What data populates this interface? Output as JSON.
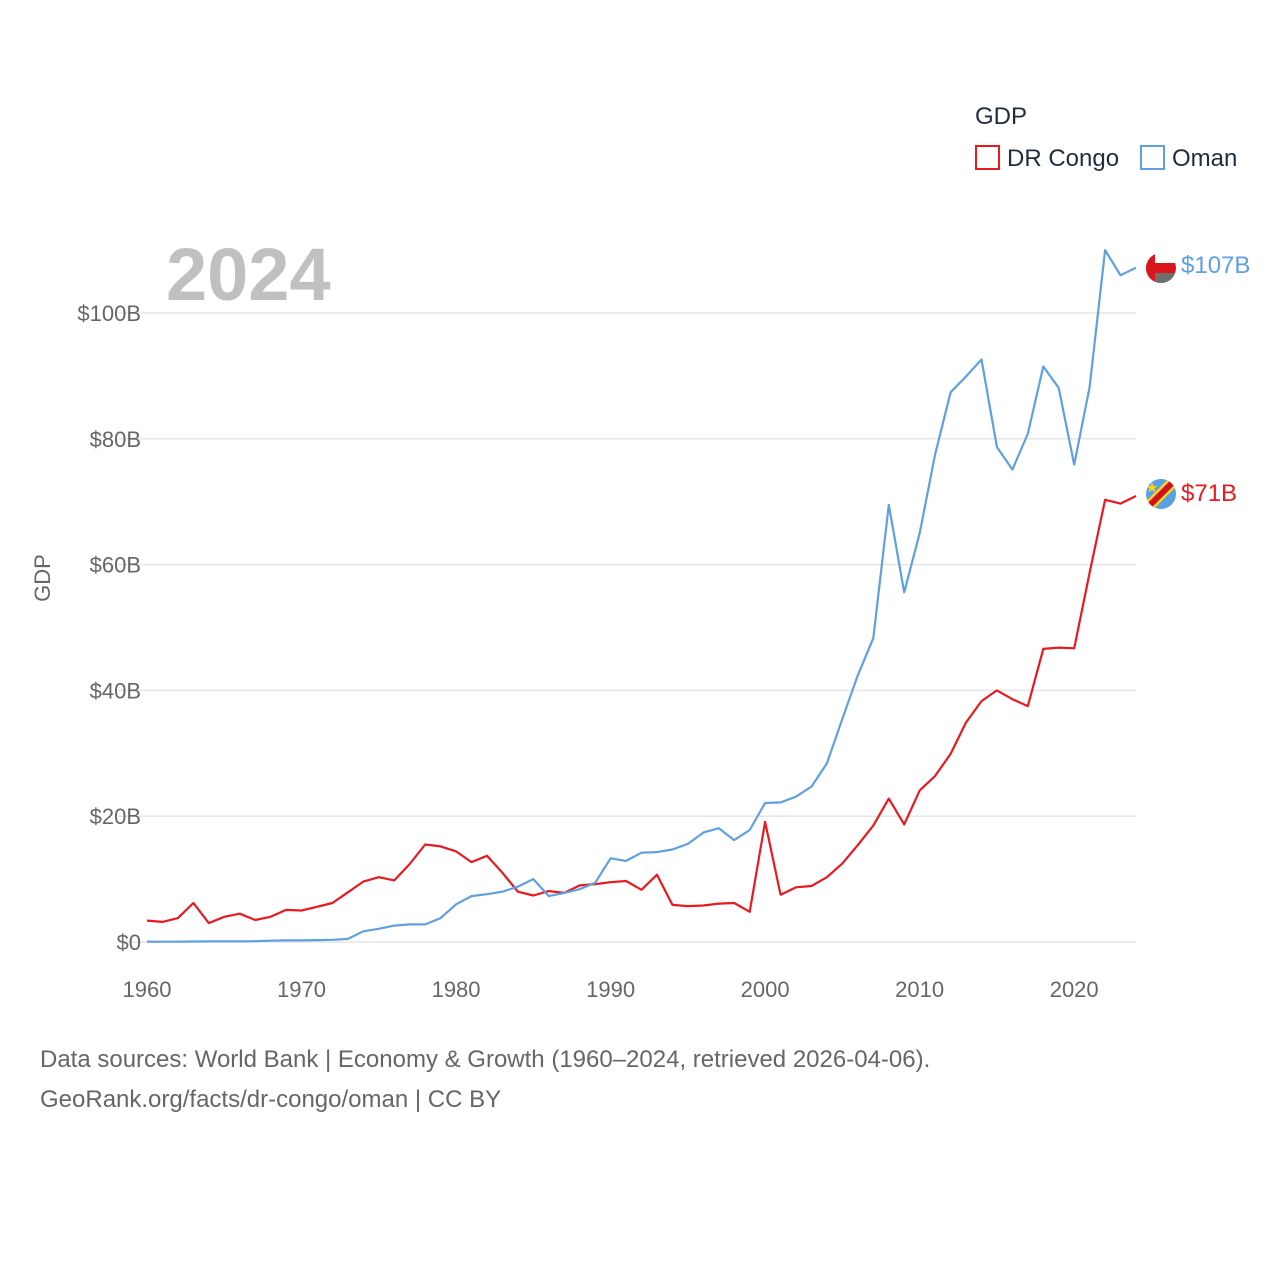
{
  "chart_data": {
    "type": "line",
    "title": "2024",
    "ylabel": "GDP",
    "xlabel": "",
    "legend_title": "GDP",
    "legend_position": "top-right",
    "grid": true,
    "xlim": [
      1960,
      2024
    ],
    "ylim": [
      0,
      110
    ],
    "x_ticks": [
      1960,
      1970,
      1980,
      1990,
      2000,
      2010,
      2020
    ],
    "x_tick_labels": [
      "1960",
      "1970",
      "1980",
      "1990",
      "2000",
      "2010",
      "2020"
    ],
    "y_ticks": [
      0,
      20,
      40,
      60,
      80,
      100
    ],
    "y_tick_labels": [
      "$0",
      "$20B",
      "$40B",
      "$60B",
      "$80B",
      "$100B"
    ],
    "unit": "billion USD",
    "x": [
      1960,
      1961,
      1962,
      1963,
      1964,
      1965,
      1966,
      1967,
      1968,
      1969,
      1970,
      1971,
      1972,
      1973,
      1974,
      1975,
      1976,
      1977,
      1978,
      1979,
      1980,
      1981,
      1982,
      1983,
      1984,
      1985,
      1986,
      1987,
      1988,
      1989,
      1990,
      1991,
      1992,
      1993,
      1994,
      1995,
      1996,
      1997,
      1998,
      1999,
      2000,
      2001,
      2002,
      2003,
      2004,
      2005,
      2006,
      2007,
      2008,
      2009,
      2010,
      2011,
      2012,
      2013,
      2014,
      2015,
      2016,
      2017,
      2018,
      2019,
      2020,
      2021,
      2022,
      2023,
      2024
    ],
    "series": [
      {
        "name": "DR Congo",
        "color": "#e8191f",
        "end_label": "$71B",
        "values": [
          3.4,
          3.2,
          3.8,
          6.2,
          3.0,
          4.0,
          4.5,
          3.5,
          4.0,
          5.1,
          5.0,
          5.6,
          6.2,
          7.9,
          9.6,
          10.3,
          9.8,
          12.4,
          15.5,
          15.2,
          14.4,
          12.7,
          13.7,
          11.0,
          8.0,
          7.4,
          8.1,
          7.8,
          9.0,
          9.2,
          9.5,
          9.7,
          8.3,
          10.7,
          5.9,
          5.7,
          5.8,
          6.1,
          6.2,
          4.8,
          19.1,
          7.5,
          8.7,
          8.9,
          10.3,
          12.5,
          15.4,
          18.5,
          22.8,
          18.7,
          24.1,
          26.4,
          29.9,
          34.9,
          38.3,
          40.0,
          38.6,
          37.5,
          46.6,
          46.8,
          46.7,
          58.7,
          70.3,
          69.7,
          70.9
        ]
      },
      {
        "name": "Oman",
        "color": "#5fa0e0",
        "end_label": "$107B",
        "values": [
          0.05,
          0.05,
          0.05,
          0.08,
          0.09,
          0.1,
          0.1,
          0.12,
          0.2,
          0.25,
          0.26,
          0.3,
          0.35,
          0.5,
          1.7,
          2.1,
          2.6,
          2.8,
          2.8,
          3.8,
          6.0,
          7.3,
          7.6,
          8.0,
          8.8,
          10.0,
          7.3,
          7.8,
          8.4,
          9.4,
          13.3,
          12.9,
          14.2,
          14.3,
          14.7,
          15.6,
          17.4,
          18.1,
          16.2,
          17.8,
          22.1,
          22.2,
          23.1,
          24.7,
          28.4,
          35.5,
          42.4,
          48.3,
          69.5,
          55.6,
          65.0,
          77.5,
          87.4,
          89.9,
          92.6,
          78.7,
          75.1,
          80.8,
          91.5,
          88.1,
          75.9,
          88.2,
          110.0,
          106.0,
          107.2
        ]
      }
    ]
  },
  "footer": {
    "line1": "Data sources: World Bank | Economy & Growth (1960–2024, retrieved 2026-04-06).",
    "line2": "GeoRank.org/facts/dr-congo/oman | CC BY"
  }
}
